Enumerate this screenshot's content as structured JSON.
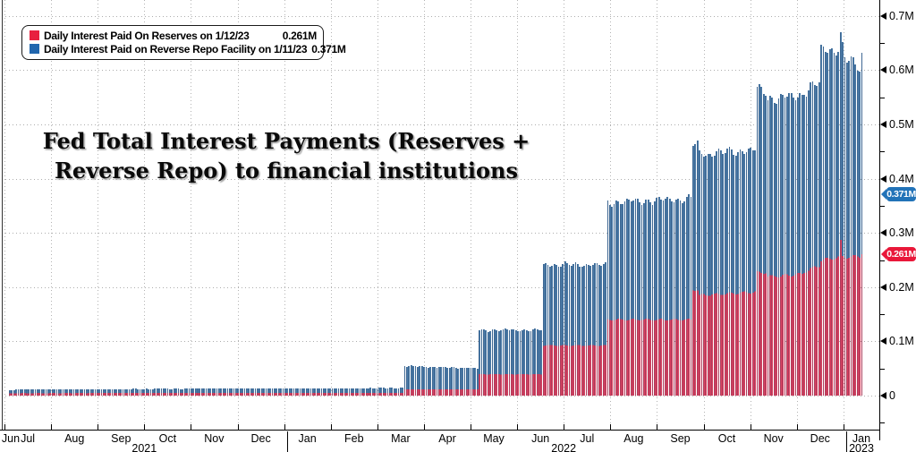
{
  "title": {
    "line1": "Fed Total Interest Payments (Reserves +",
    "line2": "Reverse Repo) to financial institutions"
  },
  "legend": {
    "items": [
      {
        "label": "Daily Interest Paid On Reserves on 1/12/23",
        "value": "0.261M",
        "swatch_color": "#e8203f"
      },
      {
        "label": "Daily Interest Paid on Reverse Repo Facility on 1/11/23",
        "value": "0.371M",
        "swatch_color": "#2166ae"
      }
    ]
  },
  "chart_data": {
    "type": "bar",
    "stacked": true,
    "grid": "dotted",
    "legend_position": "top-left",
    "units": "M",
    "y_axis": {
      "side": "right",
      "min": 0,
      "max": 0.7,
      "major_tick_step": 0.1,
      "minor_tick_step": 0.05,
      "ticks": [
        {
          "v": 0.0,
          "label": "0"
        },
        {
          "v": 0.1,
          "label": "0.1M"
        },
        {
          "v": 0.2,
          "label": "0.2M"
        },
        {
          "v": 0.3,
          "label": "0.3M"
        },
        {
          "v": 0.4,
          "label": "0.4M"
        },
        {
          "v": 0.5,
          "label": "0.5M"
        },
        {
          "v": 0.6,
          "label": "0.6M"
        },
        {
          "v": 0.7,
          "label": "0.7M"
        }
      ]
    },
    "x_axis": {
      "month_labels": [
        "Jun",
        "Jul",
        "Aug",
        "Sep",
        "Oct",
        "Nov",
        "Dec",
        "Jan",
        "Feb",
        "Mar",
        "Apr",
        "May",
        "Jun",
        "Jul",
        "Aug",
        "Sep",
        "Oct",
        "Nov",
        "Dec",
        "Jan"
      ],
      "year_labels": [
        "2021",
        "2022",
        "2023"
      ],
      "range_note": "late Jun 2021 through mid Jan 2023, one bar per business day"
    },
    "series": [
      {
        "name": "Daily Interest Paid On Reserves",
        "color": "#dc4160"
      },
      {
        "name": "Daily Interest Paid on Reverse Repo Facility",
        "color": "#4b7ca9"
      }
    ],
    "last_values": {
      "reserves": "0.261M",
      "reverse_repo": "0.371M"
    },
    "badges": [
      {
        "value": "0.371M",
        "level": 0.371,
        "color": "#2273b8"
      },
      {
        "value": "0.261M",
        "level": 0.261,
        "color": "#e9183a"
      }
    ],
    "bars": {
      "count": 400,
      "segments": [
        {
          "from": 0,
          "to": 2,
          "reserves": 0.004,
          "rrp": 0.006
        },
        {
          "from": 3,
          "to": 184,
          "reserves": 0.0045,
          "reserves_end": 0.005,
          "rrp": 0.007,
          "rrp_end": 0.0092
        },
        {
          "from": 185,
          "to": 219,
          "reserves": 0.0115,
          "rrp": 0.043,
          "rrp_end": 0.039
        },
        {
          "from": 220,
          "to": 249,
          "reserves": 0.0395,
          "rrp": 0.0815
        },
        {
          "from": 250,
          "to": 279,
          "reserves": 0.0925,
          "rrp": 0.149
        },
        {
          "from": 280,
          "to": 319,
          "reserves": 0.14,
          "rrp": 0.216,
          "rrp_end": 0.223
        },
        {
          "from": 320,
          "to": 322,
          "reserves": 0.195,
          "rrp": 0.27
        },
        {
          "from": 323,
          "to": 349,
          "reserves": 0.185,
          "reserves_end": 0.191,
          "rrp": 0.26,
          "rrp_end": 0.2625
        },
        {
          "from": 350,
          "to": 354,
          "reserves": 0.227,
          "rrp": 0.336
        },
        {
          "from": 355,
          "to": 371,
          "reserves": 0.219,
          "reserves_end": 0.224,
          "rrp": 0.328,
          "rrp_end": 0.329
        },
        {
          "from": 372,
          "to": 379,
          "reserves": 0.228,
          "reserves_end": 0.24,
          "rrp": 0.335,
          "rrp_end": 0.336
        },
        {
          "from": 380,
          "to": 390,
          "reserves": 0.25,
          "reserves_end": 0.256,
          "rrp": 0.386
        },
        {
          "from": 391,
          "to": 398,
          "reserves": 0.2555,
          "reserves_end": 0.257,
          "rrp": 0.368,
          "rrp_end": 0.346
        },
        {
          "from": 399,
          "to": 399,
          "reserves": 0.261,
          "rrp": 0.371
        }
      ],
      "specials": {
        "389": {
          "reserves": 0.287,
          "rrp": 0.383
        }
      }
    }
  }
}
